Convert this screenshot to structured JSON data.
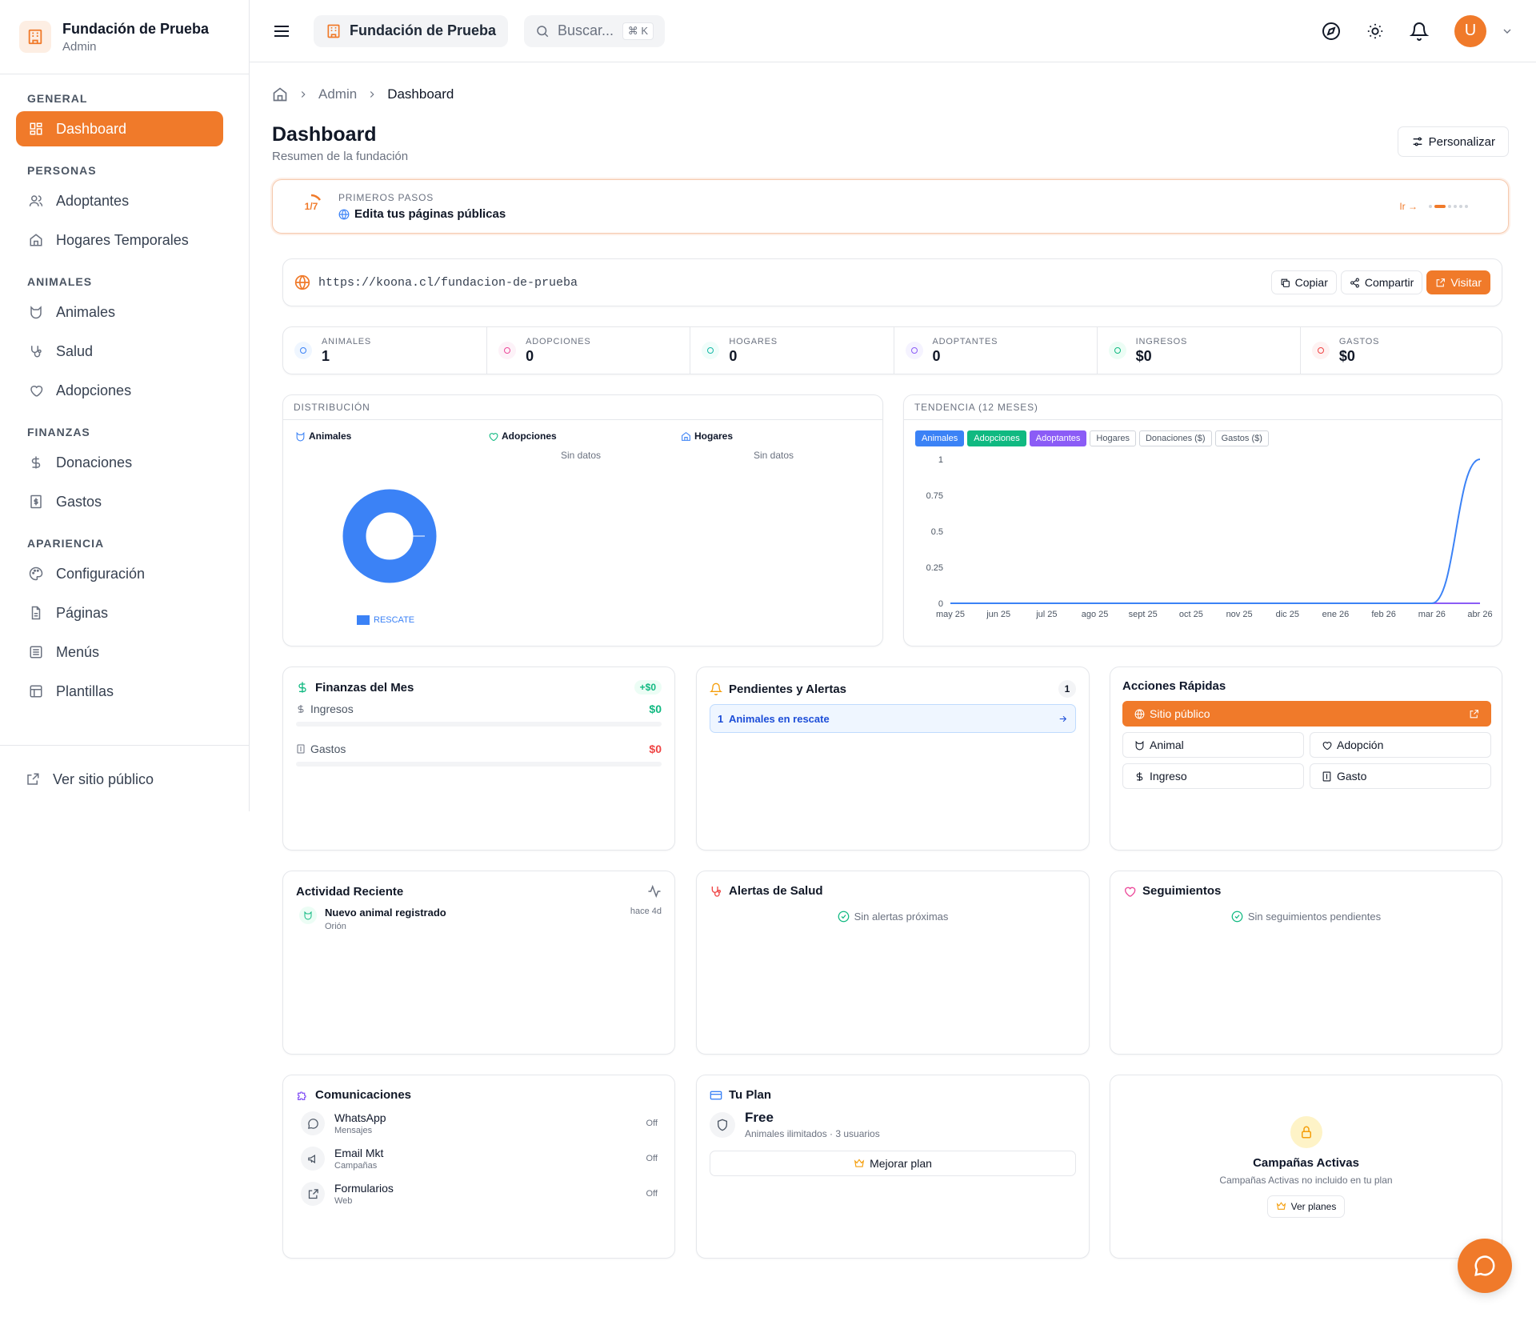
{
  "brand": {
    "name": "Fundación de Prueba",
    "role": "Admin"
  },
  "sidebar": {
    "sections": [
      {
        "title": "GENERAL",
        "items": [
          {
            "label": "Dashboard",
            "icon": "grid-icon",
            "active": true
          }
        ]
      },
      {
        "title": "PERSONAS",
        "items": [
          {
            "label": "Adoptantes",
            "icon": "users-icon"
          },
          {
            "label": "Hogares Temporales",
            "icon": "home-icon"
          }
        ]
      },
      {
        "title": "ANIMALES",
        "items": [
          {
            "label": "Animales",
            "icon": "cat-icon"
          },
          {
            "label": "Salud",
            "icon": "stethoscope-icon"
          },
          {
            "label": "Adopciones",
            "icon": "heart-icon"
          }
        ]
      },
      {
        "title": "FINANZAS",
        "items": [
          {
            "label": "Donaciones",
            "icon": "dollar-icon"
          },
          {
            "label": "Gastos",
            "icon": "receipt-icon"
          }
        ]
      },
      {
        "title": "APARIENCIA",
        "items": [
          {
            "label": "Configuración",
            "icon": "palette-icon"
          },
          {
            "label": "Páginas",
            "icon": "file-icon"
          },
          {
            "label": "Menús",
            "icon": "list-icon"
          },
          {
            "label": "Plantillas",
            "icon": "layout-icon"
          }
        ]
      }
    ],
    "footer_link": "Ver sitio público"
  },
  "topbar": {
    "org": "Fundación de Prueba",
    "search_placeholder": "Buscar...",
    "search_shortcut": "⌘ K",
    "avatar_initial": "U"
  },
  "breadcrumb": {
    "admin": "Admin",
    "current": "Dashboard"
  },
  "page": {
    "title": "Dashboard",
    "subtitle": "Resumen de la fundación",
    "customize": "Personalizar"
  },
  "onboarding": {
    "progress": "1/7",
    "label": "PRIMEROS PASOS",
    "task": "Edita tus páginas públicas",
    "go": "Ir →"
  },
  "public_url": {
    "url": "https://koona.cl/fundacion-de-prueba",
    "copy": "Copiar",
    "share": "Compartir",
    "visit": "Visitar"
  },
  "stats": [
    {
      "label": "ANIMALES",
      "value": "1",
      "icon": "cat-icon",
      "color": "#3b82f6",
      "bg": "#eff6ff"
    },
    {
      "label": "ADOPCIONES",
      "value": "0",
      "icon": "heart-icon",
      "color": "#ec4899",
      "bg": "#fdf2f8"
    },
    {
      "label": "HOGARES",
      "value": "0",
      "icon": "home-icon",
      "color": "#14b8a6",
      "bg": "#f0fdfa"
    },
    {
      "label": "ADOPTANTES",
      "value": "0",
      "icon": "users-icon",
      "color": "#8b5cf6",
      "bg": "#f5f3ff"
    },
    {
      "label": "INGRESOS",
      "value": "$0",
      "icon": "dollar-icon",
      "color": "#10b981",
      "bg": "#ecfdf5"
    },
    {
      "label": "GASTOS",
      "value": "$0",
      "icon": "receipt-icon",
      "color": "#ef4444",
      "bg": "#fef2f2"
    }
  ],
  "distribution": {
    "title": "DISTRIBUCIÓN",
    "columns": [
      {
        "label": "Animales",
        "icon": "cat-icon",
        "empty": ""
      },
      {
        "label": "Adopciones",
        "icon": "heart-icon",
        "empty": "Sin datos"
      },
      {
        "label": "Hogares",
        "icon": "home-icon",
        "empty": "Sin datos"
      }
    ],
    "legend": "RESCATE"
  },
  "trend": {
    "title": "TENDENCIA (12 MESES)",
    "chips": [
      {
        "label": "Animales",
        "active": true,
        "color": "#3b82f6"
      },
      {
        "label": "Adopciones",
        "active": true,
        "color": "#10b981"
      },
      {
        "label": "Adoptantes",
        "active": true,
        "color": "#8b5cf6"
      },
      {
        "label": "Hogares",
        "active": false
      },
      {
        "label": "Donaciones ($)",
        "active": false
      },
      {
        "label": "Gastos ($)",
        "active": false
      }
    ]
  },
  "chart_data": {
    "type": "line",
    "x": [
      "may 25",
      "jun 25",
      "jul 25",
      "ago 25",
      "sept 25",
      "oct 25",
      "nov 25",
      "dic 25",
      "ene 26",
      "feb 26",
      "mar 26",
      "abr 26"
    ],
    "yticks": [
      "0",
      "0.25",
      "0.5",
      "0.75",
      "1"
    ],
    "ylim": [
      0,
      1
    ],
    "series": [
      {
        "name": "Adoptantes",
        "color": "#8b5cf6",
        "values": [
          0,
          0,
          0,
          0,
          0,
          0,
          0,
          0,
          0,
          0,
          0,
          0
        ]
      },
      {
        "name": "Animales",
        "color": "#3b82f6",
        "values": [
          0,
          0,
          0,
          0,
          0,
          0,
          0,
          0,
          0,
          0,
          0,
          1
        ]
      }
    ]
  },
  "finance": {
    "title": "Finanzas del Mes",
    "badge": "+$0",
    "income_label": "Ingresos",
    "income_value": "$0",
    "expense_label": "Gastos",
    "expense_value": "$0"
  },
  "pending": {
    "title": "Pendientes y Alertas",
    "count": "1",
    "item": "1  Animales en rescate"
  },
  "quick": {
    "title": "Acciones Rápidas",
    "public_site": "Sitio público",
    "animal": "Animal",
    "adoption": "Adopción",
    "income": "Ingreso",
    "expense": "Gasto"
  },
  "activity": {
    "title": "Actividad Reciente",
    "item_title": "Nuevo animal registrado",
    "item_sub": "Orión",
    "item_time": "hace 4d"
  },
  "health": {
    "title": "Alertas de Salud",
    "empty": "Sin alertas próximas"
  },
  "followups": {
    "title": "Seguimientos",
    "empty": "Sin seguimientos pendientes"
  },
  "comms": {
    "title": "Comunicaciones",
    "items": [
      {
        "name": "WhatsApp",
        "sub": "Mensajes",
        "status": "Off",
        "icon": "chat-icon"
      },
      {
        "name": "Email Mkt",
        "sub": "Campañas",
        "status": "Off",
        "icon": "megaphone-icon"
      },
      {
        "name": "Formularios",
        "sub": "Web",
        "status": "Off",
        "icon": "external-link-icon"
      }
    ]
  },
  "plan": {
    "title": "Tu Plan",
    "name": "Free",
    "detail": "Animales ilimitados · 3 usuarios",
    "upgrade": "Mejorar plan"
  },
  "campaigns": {
    "title": "Campañas Activas",
    "note": "Campañas Activas no incluido en tu plan",
    "cta": "Ver planes"
  },
  "colors": {
    "accent": "#f07a2a",
    "blue": "#3b82f6",
    "green": "#10b981",
    "purple": "#8b5cf6",
    "red": "#ef4444"
  }
}
